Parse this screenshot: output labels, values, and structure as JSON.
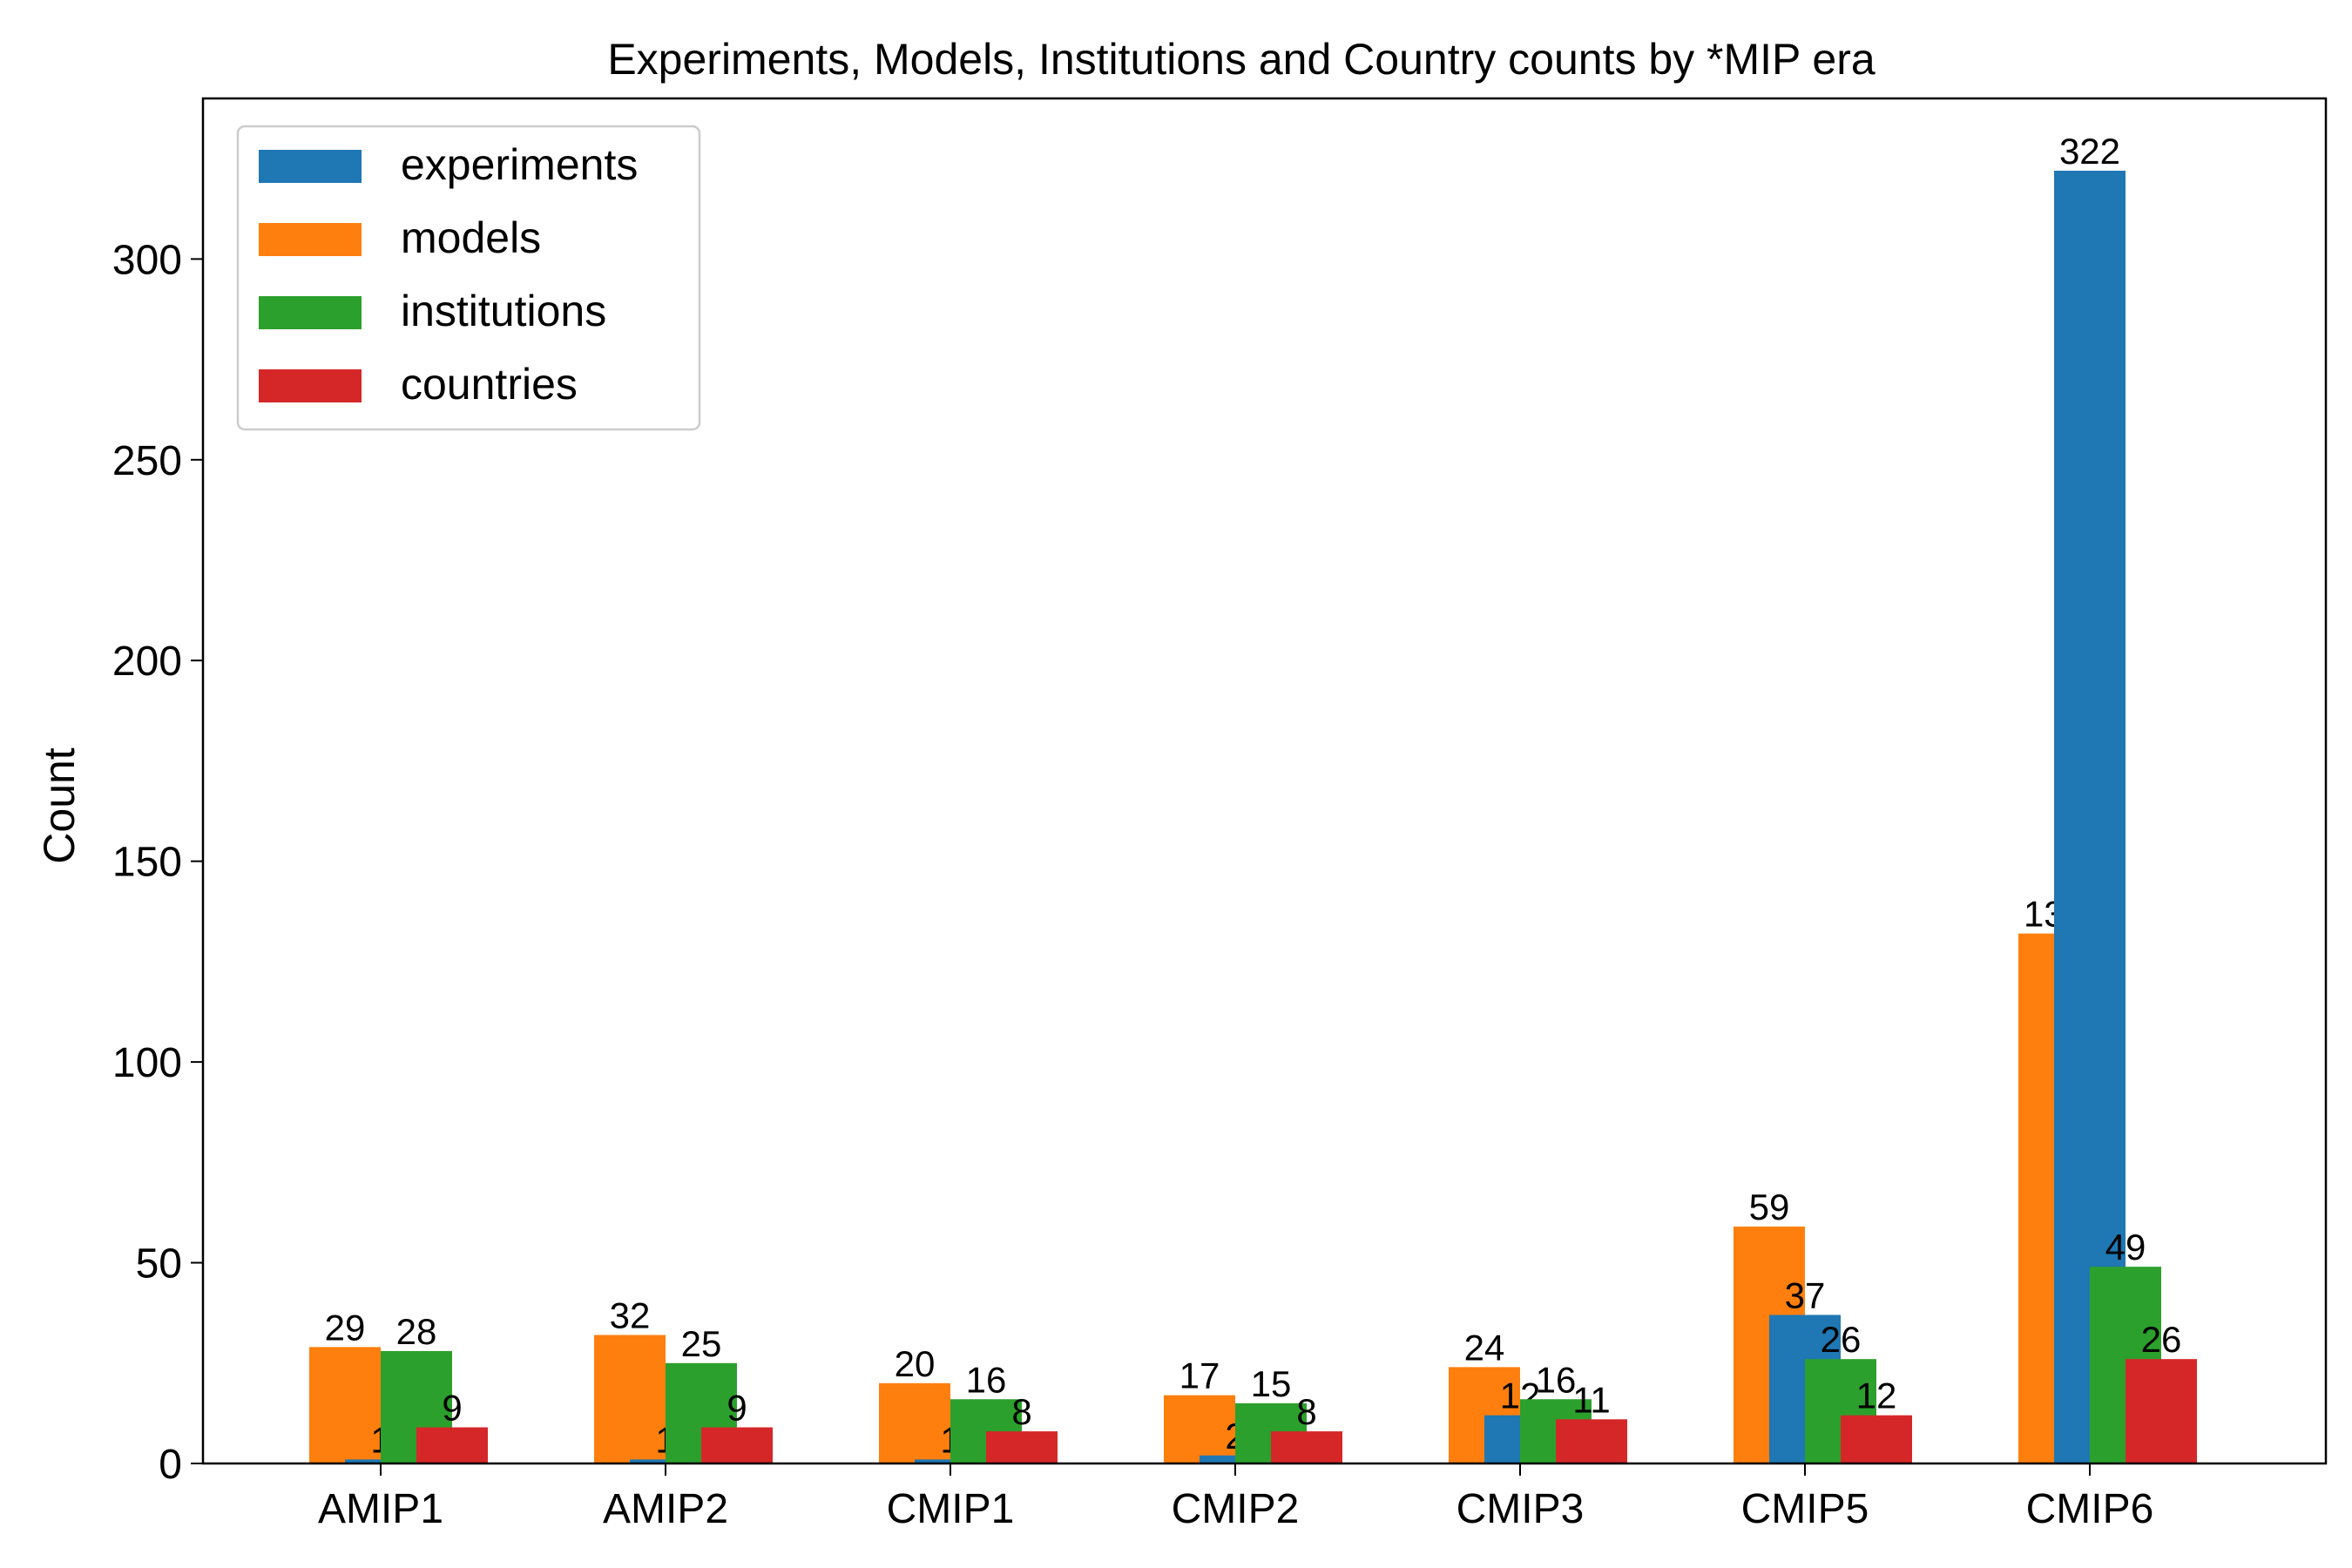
{
  "chart_data": {
    "type": "bar",
    "title": "Experiments, Models, Institutions and Country counts by *MIP era",
    "xlabel": "",
    "ylabel": "Count",
    "ylim": [
      0,
      340
    ],
    "yticks": [
      "0",
      "50",
      "100",
      "150",
      "200",
      "250",
      "300"
    ],
    "categories": [
      "AMIP1",
      "AMIP2",
      "CMIP1",
      "CMIP2",
      "CMIP3",
      "CMIP5",
      "CMIP6"
    ],
    "series": [
      {
        "name": "experiments",
        "color": "#1f77b4",
        "values": [
          1,
          1,
          1,
          2,
          12,
          37,
          322
        ]
      },
      {
        "name": "models",
        "color": "#ff7f0e",
        "values": [
          29,
          32,
          20,
          17,
          24,
          59,
          132
        ]
      },
      {
        "name": "institutions",
        "color": "#2ca02c",
        "values": [
          28,
          25,
          16,
          15,
          16,
          26,
          49
        ]
      },
      {
        "name": "countries",
        "color": "#d62728",
        "values": [
          9,
          9,
          8,
          8,
          11,
          12,
          26
        ]
      }
    ],
    "bar_order_in_group": [
      "models",
      "experiments",
      "institutions",
      "countries"
    ],
    "legend_position": "top-left",
    "grid": false
  }
}
